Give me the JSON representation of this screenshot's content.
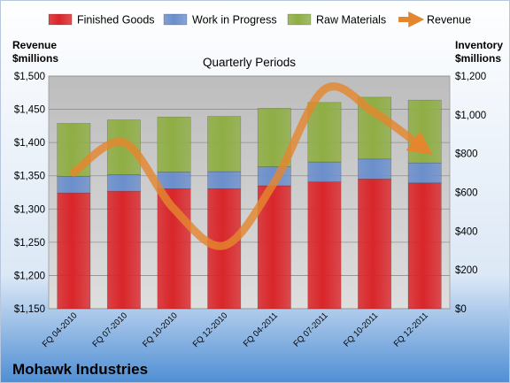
{
  "chart_data": {
    "type": "bar",
    "subtitle": "Quarterly Periods",
    "company": "Mohawk Industries",
    "left_axis_label": [
      "Revenue",
      "$millions"
    ],
    "right_axis_label": [
      "Inventory",
      "$millions"
    ],
    "categories": [
      "FQ 04-2010",
      "FQ 07-2010",
      "FQ 10-2010",
      "FQ 12-2010",
      "FQ 04-2011",
      "FQ 07-2011",
      "FQ 10-2011",
      "FQ 12-2011"
    ],
    "stacked_series": [
      {
        "name": "Finished Goods",
        "color": "#d9262a",
        "values": [
          597,
          606,
          619,
          619,
          634,
          654,
          669,
          649
        ]
      },
      {
        "name": "Work in Progress",
        "color": "#6b8fcc",
        "values": [
          86,
          86,
          86,
          88,
          98,
          103,
          103,
          103
        ]
      },
      {
        "name": "Raw Materials",
        "color": "#8fae44",
        "values": [
          273,
          282,
          284,
          285,
          302,
          307,
          319,
          324
        ]
      }
    ],
    "line_series": {
      "name": "Revenue",
      "color": "#e4862e",
      "values": [
        1355,
        1400,
        1300,
        1245,
        1340,
        1480,
        1445,
        1390
      ]
    },
    "left_axis": {
      "ylim": [
        1150,
        1500
      ],
      "ticks": [
        "$1,150",
        "$1,200",
        "$1,250",
        "$1,300",
        "$1,350",
        "$1,400",
        "$1,450",
        "$1,500"
      ]
    },
    "right_axis": {
      "ylim": [
        0,
        1200
      ],
      "ticks": [
        "$0",
        "$200",
        "$400",
        "$600",
        "$800",
        "$1,000",
        "$1,200"
      ]
    },
    "legend_position": "top",
    "grid": true
  }
}
